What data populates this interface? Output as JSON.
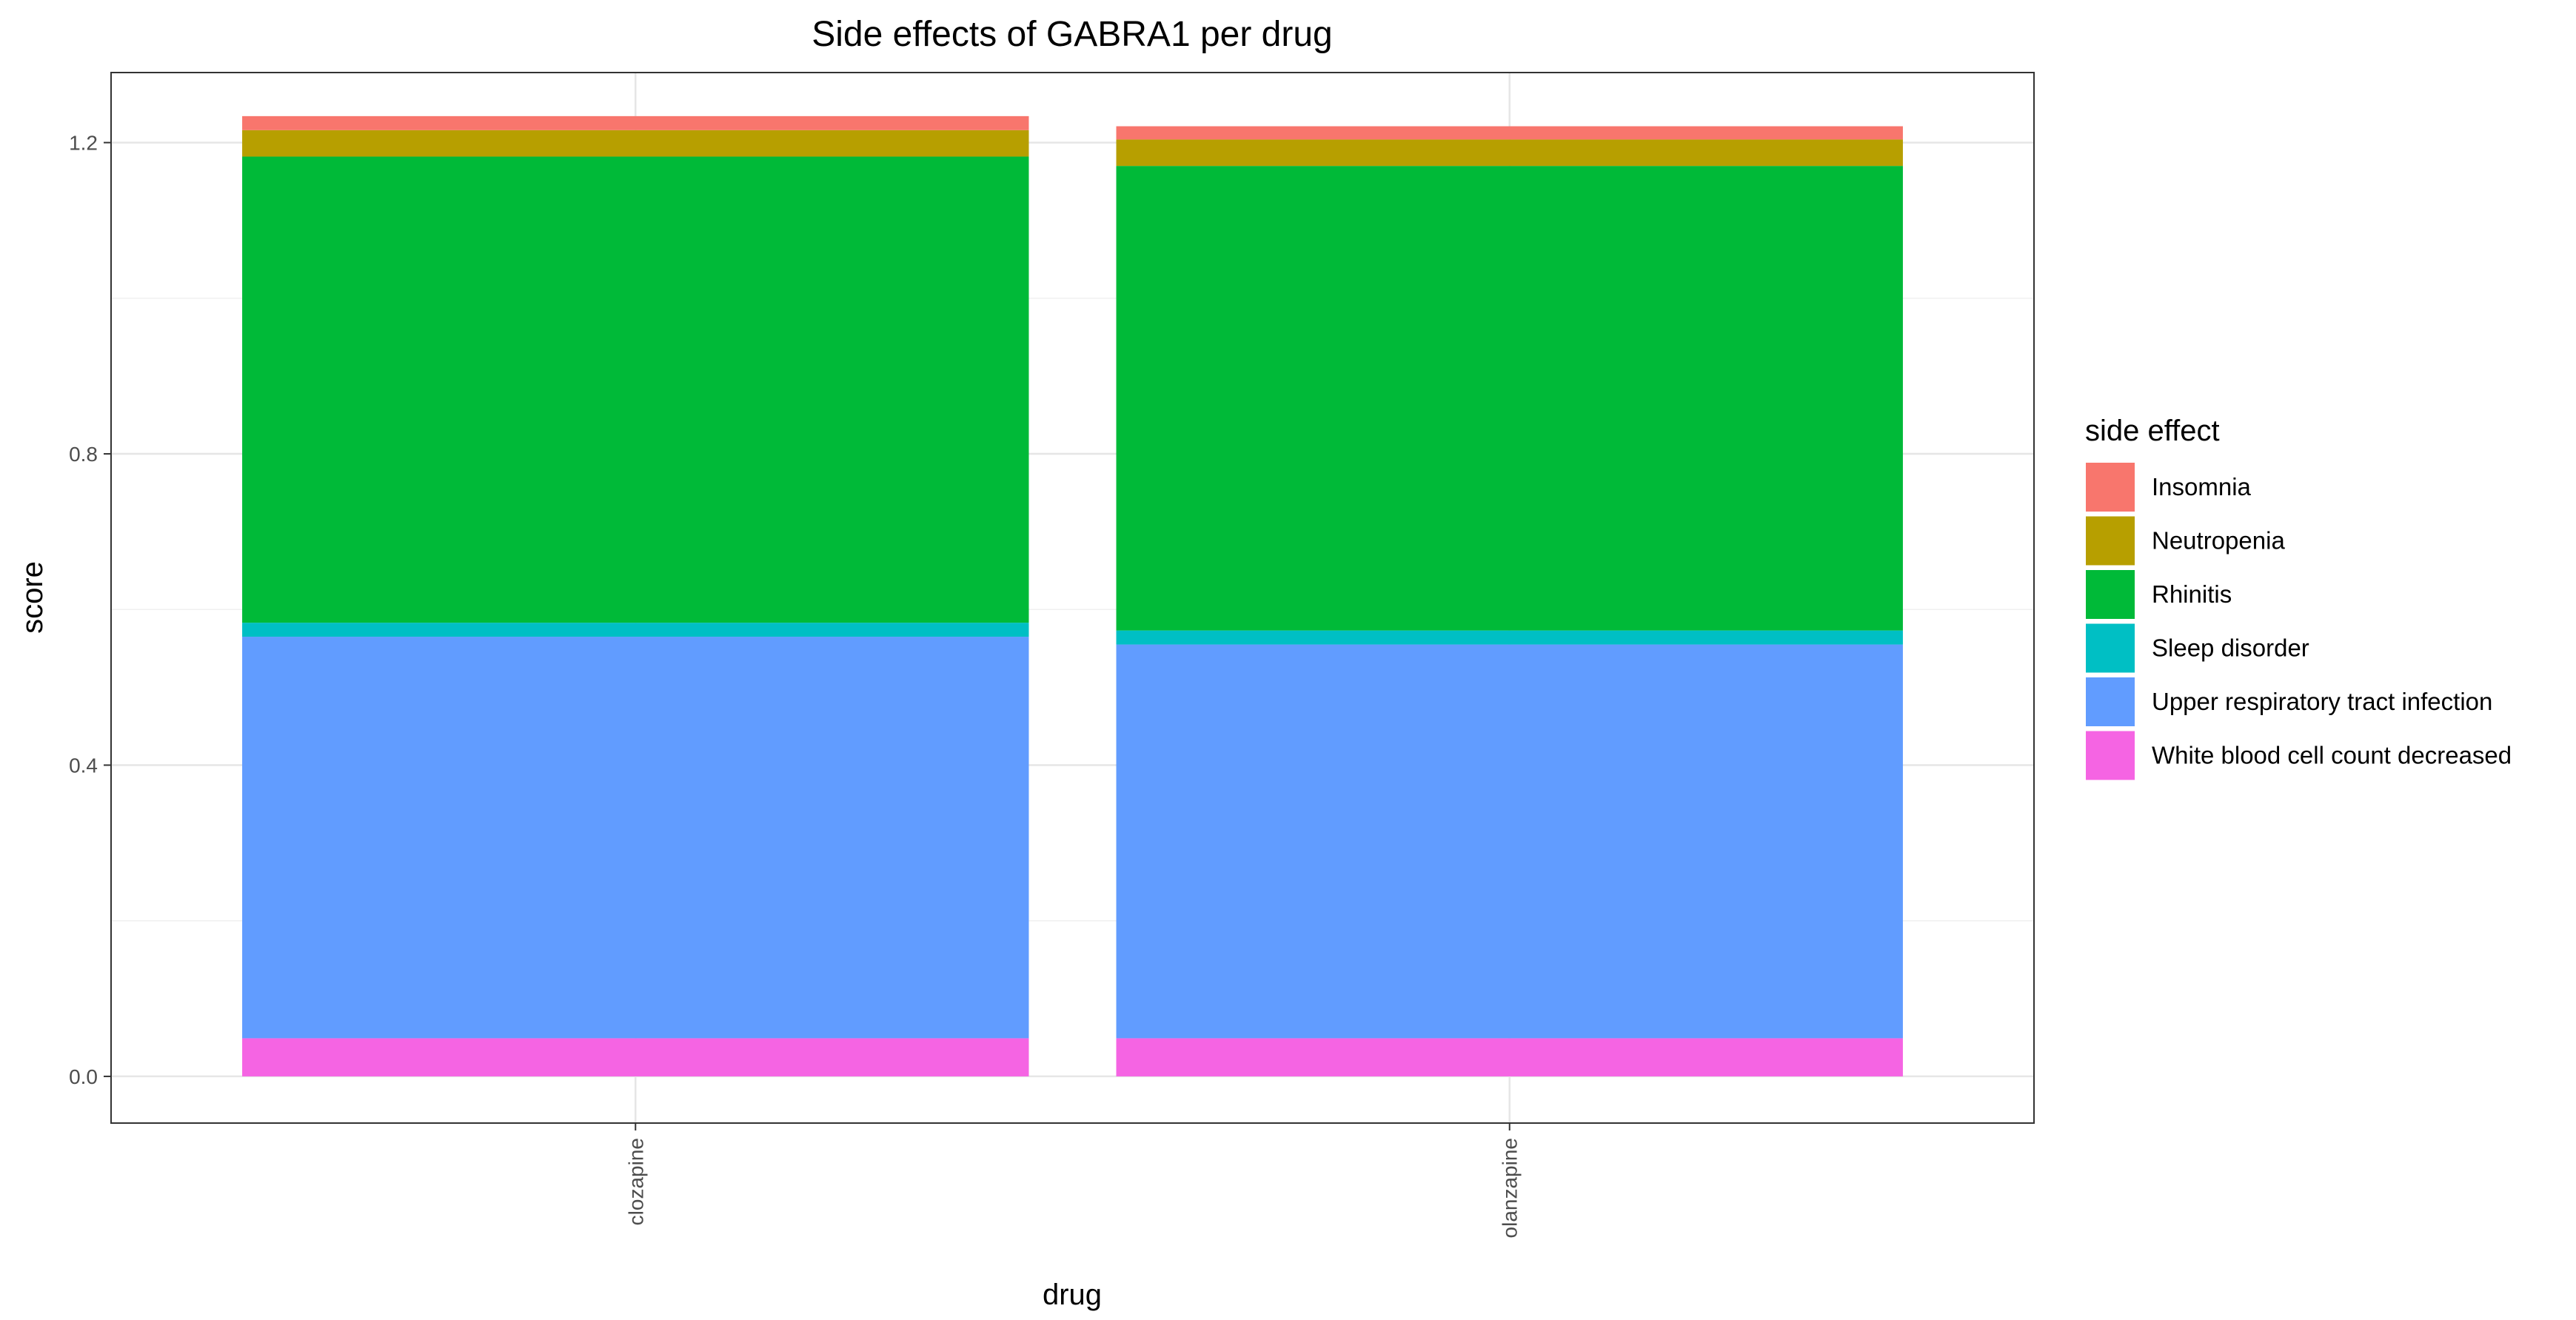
{
  "chart_data": {
    "type": "bar",
    "stacked": true,
    "title": "Side effects of GABRA1 per drug",
    "xlabel": "drug",
    "ylabel": "score",
    "ylim": [
      -0.06,
      1.29
    ],
    "yticks": [
      0.0,
      0.4,
      0.8,
      1.2
    ],
    "ytick_labels": [
      "0.0",
      "0.4",
      "0.8",
      "1.2"
    ],
    "grid": true,
    "legend_title": "side effect",
    "legend_position": "right",
    "categories": [
      "clozapine",
      "olanzapine"
    ],
    "series": [
      {
        "name": "White blood cell count decreased",
        "color": "#F564E3",
        "values": [
          0.049,
          0.049
        ]
      },
      {
        "name": "Upper respiratory tract infection",
        "color": "#619CFF",
        "values": [
          0.516,
          0.506
        ]
      },
      {
        "name": "Sleep disorder",
        "color": "#00BFC4",
        "values": [
          0.018,
          0.018
        ]
      },
      {
        "name": "Rhinitis",
        "color": "#00BA38",
        "values": [
          0.599,
          0.597
        ]
      },
      {
        "name": "Neutropenia",
        "color": "#B79F00",
        "values": [
          0.034,
          0.034
        ]
      },
      {
        "name": "Insomnia",
        "color": "#F8766D",
        "values": [
          0.018,
          0.017
        ]
      }
    ],
    "legend_order": [
      "Insomnia",
      "Neutropenia",
      "Rhinitis",
      "Sleep disorder",
      "Upper respiratory tract infection",
      "White blood cell count decreased"
    ]
  }
}
